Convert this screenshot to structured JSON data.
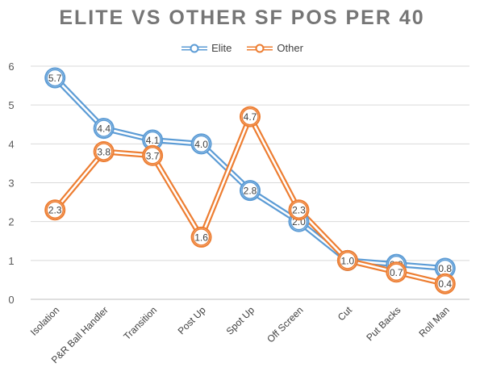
{
  "chart_data": {
    "type": "line",
    "title": "ELITE VS OTHER SF POS PER 40",
    "categories": [
      "Isolation",
      "P&R Ball Handler",
      "Transition",
      "Post Up",
      "Spot Up",
      "Off Screen",
      "Cut",
      "Put Backs",
      "Roll Man"
    ],
    "ylim": [
      0,
      6
    ],
    "yticks": [
      "0",
      "1",
      "2",
      "3",
      "4",
      "5",
      "6"
    ],
    "grid": true,
    "legend_position": "top",
    "series": [
      {
        "name": "Elite",
        "color": "#5B9BD5",
        "values": [
          5.7,
          4.4,
          4.1,
          4.0,
          2.8,
          2.0,
          1.0,
          0.9,
          0.8
        ],
        "labels": [
          "5.7",
          "4.4",
          "4.1",
          "4.0",
          "2.8",
          "2.0",
          "1.0",
          "0.9",
          "0.8"
        ]
      },
      {
        "name": "Other",
        "color": "#ED7D31",
        "values": [
          2.3,
          3.8,
          3.7,
          1.6,
          4.7,
          2.3,
          1.0,
          0.7,
          0.4
        ],
        "labels": [
          "2.3",
          "3.8",
          "3.7",
          "1.6",
          "4.7",
          "2.3",
          "1.0",
          "0.7",
          "0.4"
        ]
      }
    ]
  }
}
